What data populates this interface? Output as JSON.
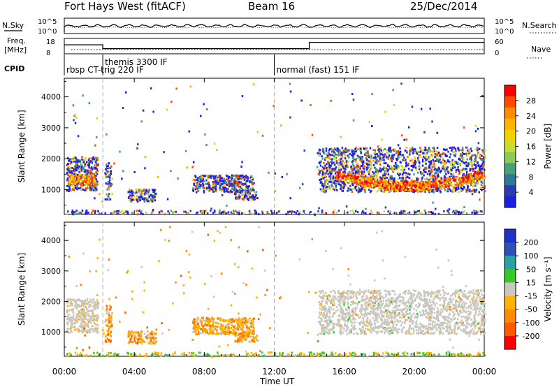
{
  "header": {
    "title": "Fort Hays West (fitACF)",
    "beam": "Beam 16",
    "date": "25/Dec/2014"
  },
  "strip_labels": {
    "nsky": "N.Sky",
    "nsky_ticks": [
      "10^5",
      "10^0"
    ],
    "nsearch": "N.Search",
    "nsearch_ticks": [
      "10^5",
      "10^0"
    ],
    "freq": "Freq.",
    "freq_unit": "[MHz]",
    "freq_ticks": [
      "18",
      "8"
    ],
    "nave": "Nave",
    "nave_ticks": [
      "60",
      "0"
    ],
    "cpid": "CPID"
  },
  "cpid_segments": [
    {
      "label": "rbsp CT-trig 220 IF",
      "start_hour": 0
    },
    {
      "label": "themis 3300 IF",
      "start_hour": 2.2
    },
    {
      "label": "normal (fast) 151 IF",
      "start_hour": 12
    }
  ],
  "freq_steps": [
    {
      "from": 0,
      "to": 2.2,
      "value": 14
    },
    {
      "from": 2.2,
      "to": 14,
      "value": 11
    },
    {
      "from": 14,
      "to": 24,
      "value": 16
    }
  ],
  "chart_data": [
    {
      "type": "heatmap",
      "name": "power-panel",
      "xlabel": "",
      "ylabel": "Slant Range [km]",
      "x_ticks": [
        "00:00",
        "04:00",
        "08:00",
        "12:00",
        "16:00",
        "20:00",
        "00:00"
      ],
      "xlim": [
        0,
        24
      ],
      "ylim": [
        200,
        4600
      ],
      "y_ticks": [
        1000,
        2000,
        3000,
        4000
      ],
      "colorbar": {
        "label": "Power [dB]",
        "ticks": [
          28,
          24,
          20,
          16,
          12,
          8,
          4
        ],
        "colors": [
          "#ff0000",
          "#ff4a00",
          "#ff8c00",
          "#ffb300",
          "#f2d200",
          "#c8dc32",
          "#8cc85a",
          "#46a078",
          "#2d7a96",
          "#283cb4",
          "#1e1ee6"
        ]
      }
    },
    {
      "type": "heatmap",
      "name": "velocity-panel",
      "xlabel": "Time UT",
      "ylabel": "Slant Range [km]",
      "x_ticks": [
        "00:00",
        "04:00",
        "08:00",
        "12:00",
        "16:00",
        "20:00",
        "00:00"
      ],
      "xlim": [
        0,
        24
      ],
      "ylim": [
        200,
        4600
      ],
      "y_ticks": [
        1000,
        2000,
        3000,
        4000
      ],
      "colorbar": {
        "label": "Velocity [m s⁻¹]",
        "ticks": [
          200,
          100,
          50,
          15,
          -15,
          -50,
          -100,
          -200
        ],
        "colors": [
          "#1e32c8",
          "#2e52b4",
          "#2aa0a0",
          "#34c828",
          "#c8c8c0",
          "#ffb300",
          "#ff8c00",
          "#ff5a00",
          "#ff0000"
        ]
      }
    }
  ]
}
